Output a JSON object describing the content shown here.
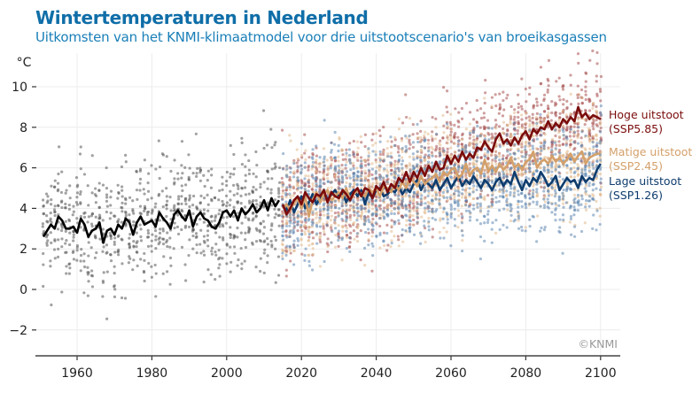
{
  "title": "Wintertemperaturen in Nederland",
  "subtitle": "Uitkomsten van het KNMI-klimaatmodel voor drie uitstootscenario's van broeikasgassen",
  "copyright": "©KNMI",
  "chart_data": {
    "type": "line",
    "ylabel": "°C",
    "xlim": [
      1950,
      2105
    ],
    "ylim": [
      -3.3,
      11.4
    ],
    "grid": true,
    "legend_placement": "right",
    "x_ticks": [
      1960,
      1980,
      2000,
      2020,
      2040,
      2060,
      2080,
      2100
    ],
    "x_tick_labels": [
      "1960",
      "1980",
      "2000",
      "2020",
      "2040",
      "2060",
      "2080",
      "2100"
    ],
    "y_ticks": [
      -2,
      0,
      2,
      4,
      6,
      8,
      10
    ],
    "y_tick_labels": [
      "−2",
      "0",
      "2",
      "4",
      "6",
      "8",
      "10"
    ],
    "ensemble_spread": {
      "historical": 1.5,
      "scenarios": 1.3
    },
    "series": [
      {
        "key": "historical",
        "color": "#000000",
        "point_color": "#555555",
        "x_start": 1951,
        "values": [
          2.6,
          2.9,
          3.2,
          3.0,
          3.6,
          3.4,
          3.0,
          3.0,
          3.1,
          2.8,
          3.5,
          3.2,
          2.6,
          2.9,
          3.0,
          3.3,
          2.3,
          2.9,
          3.0,
          2.7,
          3.2,
          3.0,
          3.5,
          3.3,
          2.7,
          3.3,
          3.6,
          3.2,
          3.3,
          3.4,
          3.1,
          3.8,
          3.5,
          3.3,
          3.0,
          3.7,
          3.9,
          3.6,
          3.4,
          3.9,
          3.1,
          3.6,
          3.8,
          3.5,
          3.4,
          3.1,
          3.0,
          3.3,
          3.8,
          3.9,
          3.6,
          3.9,
          3.4,
          4.0,
          3.7,
          3.9,
          4.2,
          3.8,
          4.0,
          4.4,
          3.9,
          4.5,
          4.1,
          4.4
        ]
      },
      {
        "key": "high",
        "name": "Hoge uitstoot",
        "name2": "(SSP5.85)",
        "color": "#7a0c0c",
        "point_color": "#a85050",
        "x_start": 2015,
        "values": [
          4.2,
          3.7,
          4.0,
          4.4,
          4.6,
          4.2,
          4.8,
          4.5,
          4.3,
          4.7,
          4.6,
          4.9,
          4.3,
          4.8,
          4.6,
          4.5,
          4.9,
          4.7,
          4.4,
          4.8,
          5.0,
          4.6,
          5.0,
          4.9,
          4.5,
          5.1,
          4.9,
          5.3,
          4.8,
          5.2,
          5.0,
          5.5,
          5.3,
          5.8,
          5.3,
          5.8,
          5.5,
          6.0,
          5.6,
          6.1,
          5.8,
          6.3,
          5.9,
          6.0,
          6.6,
          6.2,
          6.6,
          6.3,
          6.8,
          6.4,
          6.7,
          6.5,
          7.0,
          6.9,
          7.3,
          7.0,
          6.8,
          7.4,
          7.7,
          7.2,
          7.4,
          7.1,
          7.5,
          7.2,
          7.6,
          7.8,
          7.4,
          7.9,
          7.7,
          8.0,
          7.9,
          8.3,
          7.9,
          8.2,
          8.0,
          8.4,
          8.2,
          8.5,
          8.3,
          9.0,
          8.5,
          8.7,
          8.4,
          8.6,
          8.5,
          8.4
        ]
      },
      {
        "key": "moderate",
        "name": "Matige uitstoot",
        "name2": "(SSP2.45)",
        "color": "#d4a06a",
        "point_color": "#e2b98c",
        "x_start": 2015,
        "values": [
          4.0,
          4.2,
          3.9,
          4.3,
          4.5,
          4.0,
          4.6,
          3.6,
          4.4,
          4.8,
          4.3,
          4.7,
          4.9,
          4.4,
          4.6,
          4.8,
          4.5,
          5.0,
          4.4,
          4.7,
          4.9,
          4.7,
          4.6,
          5.0,
          4.8,
          5.0,
          4.6,
          5.1,
          5.0,
          4.8,
          5.2,
          4.9,
          5.3,
          5.0,
          5.5,
          5.3,
          5.1,
          5.6,
          5.2,
          5.4,
          5.5,
          5.7,
          5.3,
          5.8,
          5.6,
          5.9,
          6.0,
          5.5,
          5.7,
          6.2,
          5.6,
          5.9,
          6.0,
          5.7,
          6.4,
          5.8,
          6.1,
          5.8,
          6.2,
          5.9,
          6.1,
          6.5,
          6.0,
          6.2,
          5.9,
          6.3,
          6.4,
          6.8,
          6.0,
          6.3,
          6.4,
          6.2,
          6.6,
          6.3,
          6.5,
          6.2,
          6.4,
          6.7,
          6.3,
          6.6,
          6.8,
          6.2,
          6.5,
          6.6,
          6.7,
          6.7
        ]
      },
      {
        "key": "low",
        "name": "Lage uitstoot",
        "name2": "(SSP1.26)",
        "color": "#0f3d6e",
        "point_color": "#5f86b0",
        "x_start": 2015,
        "values": [
          4.1,
          3.9,
          4.4,
          3.8,
          4.2,
          4.6,
          4.0,
          4.3,
          4.7,
          4.2,
          4.5,
          4.8,
          4.4,
          4.7,
          4.9,
          4.6,
          4.8,
          4.3,
          4.7,
          4.9,
          4.6,
          4.9,
          4.2,
          4.8,
          4.5,
          4.9,
          5.0,
          4.6,
          4.7,
          4.9,
          4.8,
          5.1,
          4.7,
          5.0,
          4.8,
          5.2,
          5.4,
          4.9,
          5.3,
          5.2,
          5.0,
          5.4,
          4.9,
          5.2,
          5.5,
          5.0,
          5.3,
          5.6,
          5.1,
          5.4,
          5.2,
          5.6,
          5.3,
          5.0,
          5.4,
          5.2,
          4.9,
          5.3,
          5.5,
          5.1,
          5.4,
          5.2,
          5.8,
          5.3,
          4.9,
          5.4,
          5.1,
          5.5,
          5.3,
          5.8,
          5.5,
          5.1,
          5.3,
          5.6,
          4.9,
          5.2,
          5.5,
          5.3,
          5.4,
          5.0,
          5.6,
          5.3,
          5.5,
          5.4,
          5.9,
          6.2
        ]
      }
    ]
  }
}
